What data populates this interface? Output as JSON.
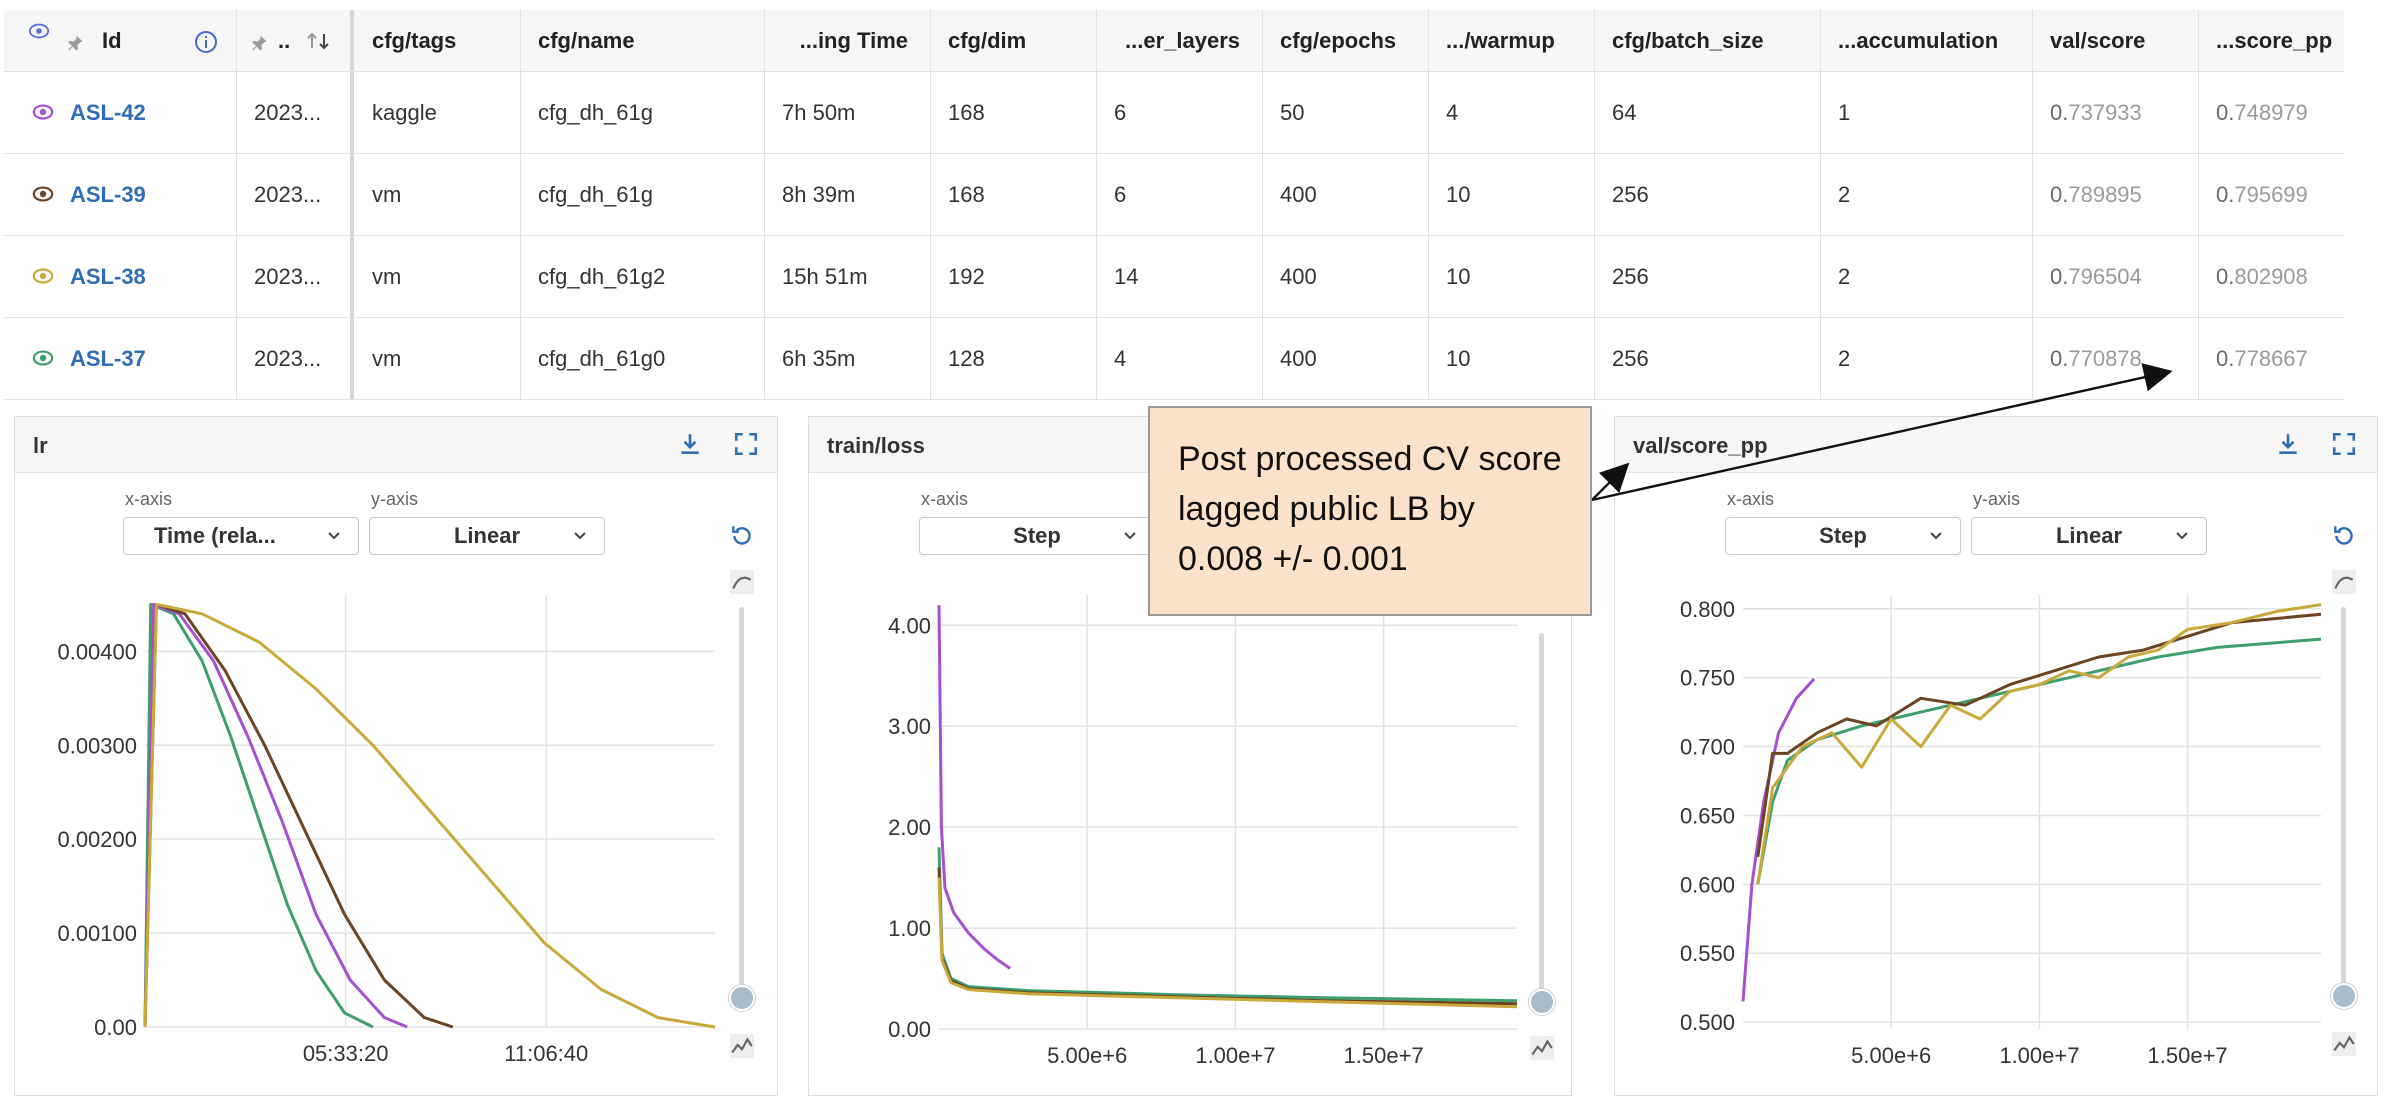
{
  "table": {
    "columns": [
      "Id",
      "..",
      "cfg/tags",
      "cfg/name",
      "...ing Time",
      "cfg/dim",
      "...er_layers",
      "cfg/epochs",
      ".../warmup",
      "cfg/batch_size",
      "...accumulation",
      "val/score",
      "...score_pp"
    ],
    "rows": [
      {
        "id": "ASL-42",
        "date": "2023...",
        "tags": "kaggle",
        "name": "cfg_dh_61g",
        "time": "7h 50m",
        "dim": "168",
        "layers": "6",
        "epochs": "50",
        "warmup": "4",
        "batch": "64",
        "accum": "1",
        "val_lead": "0.",
        "val_rest": "737933",
        "pp_lead": "0.",
        "pp_rest": "748979",
        "color": "#a64fd0"
      },
      {
        "id": "ASL-39",
        "date": "2023...",
        "tags": "vm",
        "name": "cfg_dh_61g",
        "time": "8h 39m",
        "dim": "168",
        "layers": "6",
        "epochs": "400",
        "warmup": "10",
        "batch": "256",
        "accum": "2",
        "val_lead": "0.",
        "val_rest": "789895",
        "pp_lead": "0.",
        "pp_rest": "795699",
        "color": "#6b4423"
      },
      {
        "id": "ASL-38",
        "date": "2023...",
        "tags": "vm",
        "name": "cfg_dh_61g2",
        "time": "15h 51m",
        "dim": "192",
        "layers": "14",
        "epochs": "400",
        "warmup": "10",
        "batch": "256",
        "accum": "2",
        "val_lead": "0.",
        "val_rest": "796504",
        "pp_lead": "0.",
        "pp_rest": "802908",
        "color": "#c9a93a"
      },
      {
        "id": "ASL-37",
        "date": "2023...",
        "tags": "vm",
        "name": "cfg_dh_61g0",
        "time": "6h 35m",
        "dim": "128",
        "layers": "4",
        "epochs": "400",
        "warmup": "10",
        "batch": "256",
        "accum": "2",
        "val_lead": "0.",
        "val_rest": "770878",
        "pp_lead": "0.",
        "pp_rest": "778667",
        "color": "#3f9e6e"
      }
    ]
  },
  "panels": {
    "lr": {
      "title": "lr",
      "xaxis_label": "x-axis",
      "yaxis_label": "y-axis",
      "x_value": "Time (rela...",
      "y_value": "Linear"
    },
    "loss": {
      "title": "train/loss",
      "xaxis_label": "x-axis",
      "x_value": "Step"
    },
    "score": {
      "title": "val/score_pp",
      "xaxis_label": "x-axis",
      "yaxis_label": "y-axis",
      "x_value": "Step",
      "y_value": "Linear"
    }
  },
  "callout": {
    "text": "Post processed CV score lagged public LB by 0.008 +/- 0.001"
  },
  "chart_data": [
    {
      "type": "line",
      "title": "lr",
      "x_tick_labels": [
        "05:33:20",
        "11:06:40"
      ],
      "y_tick_labels": [
        "0.00",
        "0.00100",
        "0.00200",
        "0.00300",
        "0.00400"
      ],
      "ylim": [
        0,
        0.0046
      ],
      "series": [
        {
          "name": "ASL-37",
          "color": "#3f9e6e",
          "x": [
            0,
            0.01,
            0.05,
            0.1,
            0.15,
            0.2,
            0.25,
            0.3,
            0.35,
            0.4
          ],
          "y": [
            0,
            0.0045,
            0.0044,
            0.0039,
            0.0031,
            0.0022,
            0.0013,
            0.0006,
            0.00015,
            0
          ]
        },
        {
          "name": "ASL-42",
          "color": "#a64fd0",
          "x": [
            0,
            0.015,
            0.06,
            0.12,
            0.18,
            0.24,
            0.3,
            0.36,
            0.42,
            0.46
          ],
          "y": [
            0,
            0.0045,
            0.0044,
            0.0039,
            0.0031,
            0.0022,
            0.0012,
            0.0005,
            0.0001,
            0
          ]
        },
        {
          "name": "ASL-39",
          "color": "#6b4423",
          "x": [
            0,
            0.02,
            0.07,
            0.14,
            0.21,
            0.28,
            0.35,
            0.42,
            0.49,
            0.54
          ],
          "y": [
            0,
            0.0045,
            0.0044,
            0.0038,
            0.003,
            0.0021,
            0.0012,
            0.0005,
            0.0001,
            0
          ]
        },
        {
          "name": "ASL-38",
          "color": "#c9a93a",
          "x": [
            0,
            0.02,
            0.1,
            0.2,
            0.3,
            0.4,
            0.5,
            0.6,
            0.7,
            0.8,
            0.9,
            1.0
          ],
          "y": [
            0,
            0.0045,
            0.0044,
            0.0041,
            0.0036,
            0.003,
            0.0023,
            0.0016,
            0.0009,
            0.0004,
            0.0001,
            0
          ]
        }
      ]
    },
    {
      "type": "line",
      "title": "train/loss",
      "x_tick_labels": [
        "5.00e+6",
        "1.00e+7",
        "1.50e+7"
      ],
      "y_tick_labels": [
        "0.00",
        "1.00",
        "2.00",
        "3.00",
        "4.00"
      ],
      "xlim": [
        0,
        19500000
      ],
      "ylim": [
        0,
        4.3
      ],
      "series": [
        {
          "name": "ASL-42",
          "color": "#a64fd0",
          "x": [
            0,
            80000,
            200000,
            500000,
            1000000,
            1500000,
            2000000,
            2400000
          ],
          "y": [
            4.2,
            2.0,
            1.4,
            1.15,
            0.95,
            0.8,
            0.68,
            0.6
          ]
        },
        {
          "name": "ASL-37",
          "color": "#3f9e6e",
          "x": [
            0,
            100000,
            400000,
            1000000,
            3000000,
            8000000,
            13000000,
            19500000
          ],
          "y": [
            1.8,
            0.75,
            0.5,
            0.42,
            0.38,
            0.34,
            0.31,
            0.28
          ]
        },
        {
          "name": "ASL-39",
          "color": "#6b4423",
          "x": [
            0,
            100000,
            400000,
            1000000,
            3000000,
            8000000,
            13000000,
            19500000
          ],
          "y": [
            1.6,
            0.7,
            0.48,
            0.4,
            0.36,
            0.32,
            0.28,
            0.25
          ]
        },
        {
          "name": "ASL-38",
          "color": "#c9a93a",
          "x": [
            0,
            100000,
            400000,
            1000000,
            3000000,
            8000000,
            13000000,
            19500000
          ],
          "y": [
            1.5,
            0.68,
            0.46,
            0.39,
            0.35,
            0.31,
            0.27,
            0.22
          ]
        }
      ]
    },
    {
      "type": "line",
      "title": "val/score_pp",
      "x_tick_labels": [
        "5.00e+6",
        "1.00e+7",
        "1.50e+7"
      ],
      "y_tick_labels": [
        "0.500",
        "0.550",
        "0.600",
        "0.650",
        "0.700",
        "0.750",
        "0.800"
      ],
      "xlim": [
        0,
        19500000
      ],
      "ylim": [
        0.495,
        0.81
      ],
      "series": [
        {
          "name": "ASL-42",
          "color": "#a64fd0",
          "x": [
            0,
            300000,
            700000,
            1200000,
            1800000,
            2400000
          ],
          "y": [
            0.515,
            0.6,
            0.66,
            0.71,
            0.735,
            0.749
          ]
        },
        {
          "name": "ASL-37",
          "color": "#3f9e6e",
          "x": [
            500000,
            1000000,
            1500000,
            2500000,
            4000000,
            6000000,
            8000000,
            10000000,
            12000000,
            14000000,
            16000000,
            19500000
          ],
          "y": [
            0.6,
            0.66,
            0.69,
            0.705,
            0.715,
            0.725,
            0.735,
            0.745,
            0.755,
            0.765,
            0.772,
            0.778
          ]
        },
        {
          "name": "ASL-39",
          "color": "#6b4423",
          "x": [
            500000,
            1000000,
            1500000,
            2500000,
            3500000,
            4500000,
            6000000,
            7500000,
            9000000,
            10500000,
            12000000,
            13500000,
            15000000,
            16500000,
            19500000
          ],
          "y": [
            0.62,
            0.695,
            0.695,
            0.71,
            0.72,
            0.715,
            0.735,
            0.73,
            0.745,
            0.755,
            0.765,
            0.77,
            0.78,
            0.79,
            0.796
          ]
        },
        {
          "name": "ASL-38",
          "color": "#c9a93a",
          "x": [
            500000,
            1000000,
            2000000,
            3000000,
            4000000,
            5000000,
            6000000,
            7000000,
            8000000,
            9000000,
            10000000,
            11000000,
            12000000,
            13000000,
            14000000,
            15000000,
            16500000,
            18000000,
            19500000
          ],
          "y": [
            0.6,
            0.67,
            0.7,
            0.71,
            0.685,
            0.72,
            0.7,
            0.73,
            0.72,
            0.74,
            0.745,
            0.755,
            0.75,
            0.765,
            0.77,
            0.785,
            0.79,
            0.798,
            0.803
          ]
        }
      ]
    }
  ]
}
